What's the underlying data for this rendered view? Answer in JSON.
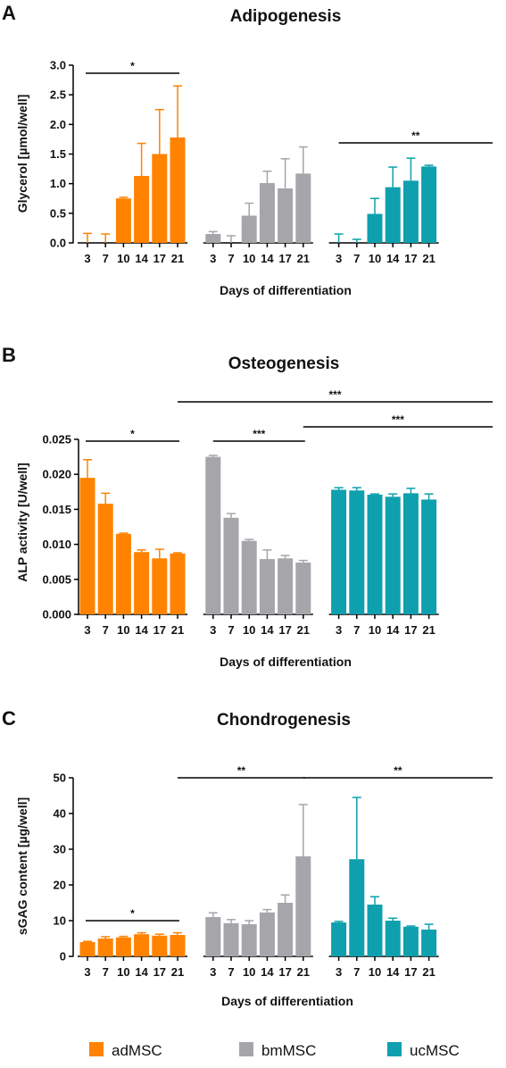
{
  "chart_data": [
    {
      "type": "bar",
      "panel": "A",
      "title": "Adipogenesis",
      "xlabel": "Days of differentiation",
      "ylabel": "Glycerol [µmol/well]",
      "ylim": [
        0,
        3.0
      ],
      "yticks": [
        "0.0",
        "0.5",
        "1.0",
        "1.5",
        "2.0",
        "2.5",
        "3.0"
      ],
      "categories": [
        "3",
        "7",
        "10",
        "14",
        "17",
        "21"
      ],
      "series": [
        {
          "name": "adMSC",
          "values": [
            0.0,
            0.0,
            0.75,
            1.13,
            1.5,
            1.78
          ],
          "errors": [
            0.16,
            0.15,
            0.02,
            0.55,
            0.75,
            0.87
          ]
        },
        {
          "name": "bmMSC",
          "values": [
            0.15,
            0.0,
            0.46,
            1.01,
            0.92,
            1.17
          ],
          "errors": [
            0.04,
            0.12,
            0.21,
            0.2,
            0.5,
            0.45
          ]
        },
        {
          "name": "ucMSC",
          "values": [
            0.0,
            0.0,
            0.49,
            0.94,
            1.05,
            1.29
          ],
          "errors": [
            0.15,
            0.06,
            0.26,
            0.34,
            0.38,
            0.02
          ]
        }
      ],
      "significance": [
        {
          "label": "*",
          "from": [
            0,
            0
          ],
          "to": [
            0,
            5
          ]
        },
        {
          "label": "**",
          "from": [
            2,
            0
          ],
          "to": [
            2,
            5
          ]
        }
      ]
    },
    {
      "type": "bar",
      "panel": "B",
      "title": "Osteogenesis",
      "xlabel": "Days of differentiation",
      "ylabel": "ALP activity [U/well]",
      "ylim": [
        0,
        0.025
      ],
      "yticks": [
        "0.000",
        "0.005",
        "0.010",
        "0.015",
        "0.020",
        "0.025"
      ],
      "categories": [
        "3",
        "7",
        "10",
        "14",
        "17",
        "21"
      ],
      "series": [
        {
          "name": "adMSC",
          "values": [
            0.0195,
            0.0158,
            0.0115,
            0.0089,
            0.008,
            0.0087
          ],
          "errors": [
            0.0026,
            0.0015,
            0.0001,
            0.0003,
            0.0013,
            0.0001
          ]
        },
        {
          "name": "bmMSC",
          "values": [
            0.0225,
            0.0138,
            0.0105,
            0.0079,
            0.008,
            0.0074
          ],
          "errors": [
            0.0002,
            0.0006,
            0.0002,
            0.0013,
            0.0004,
            0.0003
          ]
        },
        {
          "name": "ucMSC",
          "values": [
            0.0178,
            0.0177,
            0.0171,
            0.0168,
            0.0173,
            0.0164
          ],
          "errors": [
            0.0003,
            0.0004,
            0.0001,
            0.0004,
            0.0007,
            0.0008
          ]
        }
      ],
      "significance": [
        {
          "label": "*",
          "from": [
            0,
            0
          ],
          "to": [
            0,
            5
          ]
        },
        {
          "label": "***",
          "from": [
            1,
            0
          ],
          "to": [
            1,
            5
          ]
        },
        {
          "label": "***",
          "from": [
            1,
            5
          ],
          "to": [
            2,
            5
          ]
        },
        {
          "label": "***",
          "from": [
            0,
            5
          ],
          "to": [
            2,
            5
          ]
        }
      ]
    },
    {
      "type": "bar",
      "panel": "C",
      "title": "Chondrogenesis",
      "xlabel": "Days of differentiation",
      "ylabel": "sGAG content [µg/well]",
      "ylim": [
        0,
        50
      ],
      "yticks": [
        "0",
        "10",
        "20",
        "30",
        "40",
        "50"
      ],
      "categories": [
        "3",
        "7",
        "10",
        "14",
        "17",
        "21"
      ],
      "series": [
        {
          "name": "adMSC",
          "values": [
            4.0,
            5.0,
            5.3,
            6.2,
            5.8,
            6.0
          ],
          "errors": [
            0.2,
            0.5,
            0.3,
            0.4,
            0.4,
            0.6
          ]
        },
        {
          "name": "bmMSC",
          "values": [
            11.0,
            9.3,
            9.0,
            12.3,
            15.0,
            28.0
          ],
          "errors": [
            1.2,
            1.0,
            1.0,
            0.8,
            2.2,
            14.5
          ]
        },
        {
          "name": "ucMSC",
          "values": [
            9.5,
            27.2,
            14.5,
            10.0,
            8.3,
            7.5
          ],
          "errors": [
            0.3,
            17.3,
            2.2,
            0.7,
            0.2,
            1.5
          ]
        }
      ],
      "significance": [
        {
          "label": "*",
          "from": [
            0,
            0
          ],
          "to": [
            0,
            5
          ]
        },
        {
          "label": "**",
          "from": [
            0,
            5
          ],
          "to": [
            1,
            5
          ]
        },
        {
          "label": "**",
          "from": [
            1,
            5
          ],
          "to": [
            2,
            5
          ]
        }
      ]
    }
  ],
  "legend": {
    "position": "bottom",
    "items": [
      {
        "label": "adMSC",
        "color": "#FF8200"
      },
      {
        "label": "bmMSC",
        "color": "#A5A5AA"
      },
      {
        "label": "ucMSC",
        "color": "#0EA0AE"
      }
    ]
  },
  "colors": {
    "adMSC": "#FF8200",
    "bmMSC": "#A5A5AA",
    "ucMSC": "#0EA0AE",
    "axis": "#000000"
  }
}
